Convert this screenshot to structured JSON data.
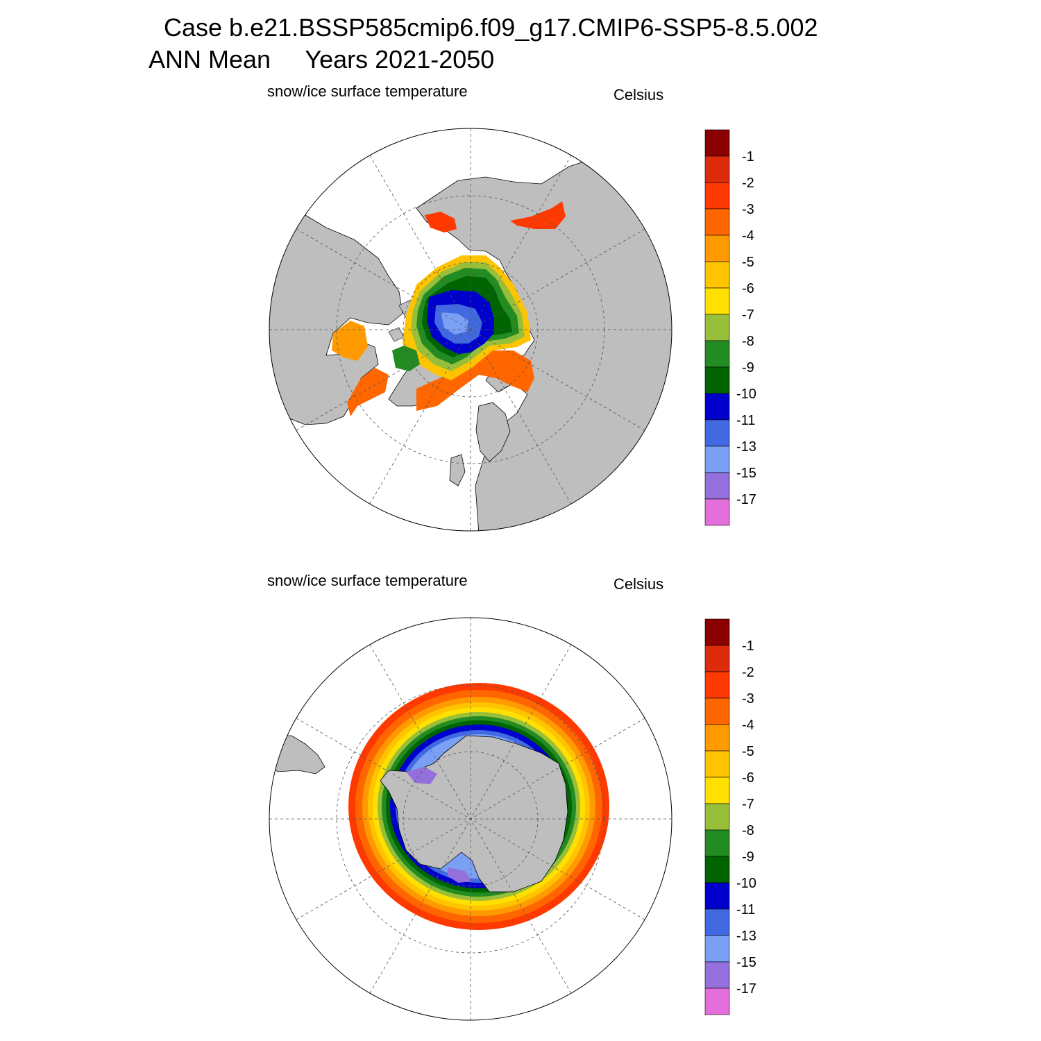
{
  "title": {
    "line1": "Case b.e21.BSSP585cmip6.f09_g17.CMIP6-SSP5-8.5.002",
    "line2": "ANN Mean     Years 2021-2050"
  },
  "colors": {
    "land": "#bebebe",
    "ice_free": "#ffffff",
    "levels": [
      "#e46fdc",
      "#9370db",
      "#7aa0f5",
      "#4169e1",
      "#0000cd",
      "#006400",
      "#228b22",
      "#98bf3a",
      "#ffe000",
      "#ffc400",
      "#ff9b00",
      "#ff6600",
      "#ff3a00",
      "#dd2b0c",
      "#8b0000"
    ]
  },
  "panels": [
    {
      "id": "arctic",
      "variable": "snow/ice surface temperature",
      "units": "Celsius",
      "hemisphere": "north",
      "colorbar": {
        "labels": [
          "-17",
          "-15",
          "-13",
          "-11",
          "-10",
          "-9",
          "-8",
          "-7",
          "-6",
          "-5",
          "-4",
          "-3",
          "-2",
          "-1"
        ]
      }
    },
    {
      "id": "antarctic",
      "variable": "snow/ice surface temperature",
      "units": "Celsius",
      "hemisphere": "south",
      "colorbar": {
        "labels": [
          "-17",
          "-15",
          "-13",
          "-11",
          "-10",
          "-9",
          "-8",
          "-7",
          "-6",
          "-5",
          "-4",
          "-3",
          "-2",
          "-1"
        ]
      }
    }
  ]
}
